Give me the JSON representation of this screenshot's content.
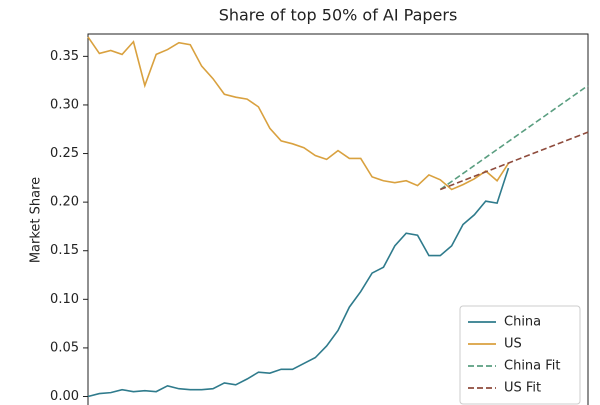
{
  "chart_data": {
    "type": "line",
    "title": "Share of top 50% of AI Papers",
    "y_label": "Market Share",
    "x": [
      0,
      1,
      2,
      3,
      4,
      5,
      6,
      7,
      8,
      9,
      10,
      11,
      12,
      13,
      14,
      15,
      16,
      17,
      18,
      19,
      20,
      21,
      22,
      23,
      24,
      25,
      26,
      27,
      28,
      29,
      30,
      31,
      32,
      33,
      34,
      35,
      36,
      37
    ],
    "series": [
      {
        "name": "China",
        "color": "#2f7b8c",
        "dash": false,
        "values": [
          0.0,
          0.003,
          0.004,
          0.007,
          0.005,
          0.006,
          0.005,
          0.011,
          0.008,
          0.007,
          0.007,
          0.008,
          0.014,
          0.012,
          0.018,
          0.025,
          0.024,
          0.028,
          0.028,
          0.034,
          0.04,
          0.052,
          0.068,
          0.092,
          0.108,
          0.127,
          0.133,
          0.155,
          0.168,
          0.166,
          0.145,
          0.145,
          0.155,
          0.177,
          0.187,
          0.201,
          0.199,
          0.235
        ]
      },
      {
        "name": "US",
        "color": "#d9a13f",
        "dash": false,
        "values": [
          0.37,
          0.353,
          0.356,
          0.352,
          0.365,
          0.32,
          0.352,
          0.357,
          0.364,
          0.362,
          0.34,
          0.327,
          0.311,
          0.308,
          0.306,
          0.298,
          0.276,
          0.263,
          0.26,
          0.256,
          0.248,
          0.244,
          0.253,
          0.245,
          0.245,
          0.226,
          0.222,
          0.22,
          0.222,
          0.217,
          0.228,
          0.223,
          0.213,
          0.218,
          0.224,
          0.232,
          0.222,
          0.24
        ]
      },
      {
        "name": "China Fit",
        "color": "#5a9e80",
        "dash": true,
        "x": [
          31,
          44
        ],
        "values": [
          0.213,
          0.32
        ]
      },
      {
        "name": "US Fit",
        "color": "#8e4b3c",
        "dash": true,
        "x": [
          31,
          44
        ],
        "values": [
          0.213,
          0.272
        ]
      }
    ],
    "xlim": [
      0,
      44
    ],
    "ylim": [
      -0.018,
      0.373
    ],
    "yticks": [
      {
        "value": 0,
        "label": "0.00"
      },
      {
        "value": 0.05,
        "label": "0.05"
      },
      {
        "value": 0.1,
        "label": "0.10"
      },
      {
        "value": 0.15,
        "label": "0.15"
      },
      {
        "value": 0.2,
        "label": "0.20"
      },
      {
        "value": 0.25,
        "label": "0.25"
      },
      {
        "value": 0.3,
        "label": "0.30"
      },
      {
        "value": 0.35,
        "label": "0.35"
      }
    ],
    "legend": "lower right"
  }
}
